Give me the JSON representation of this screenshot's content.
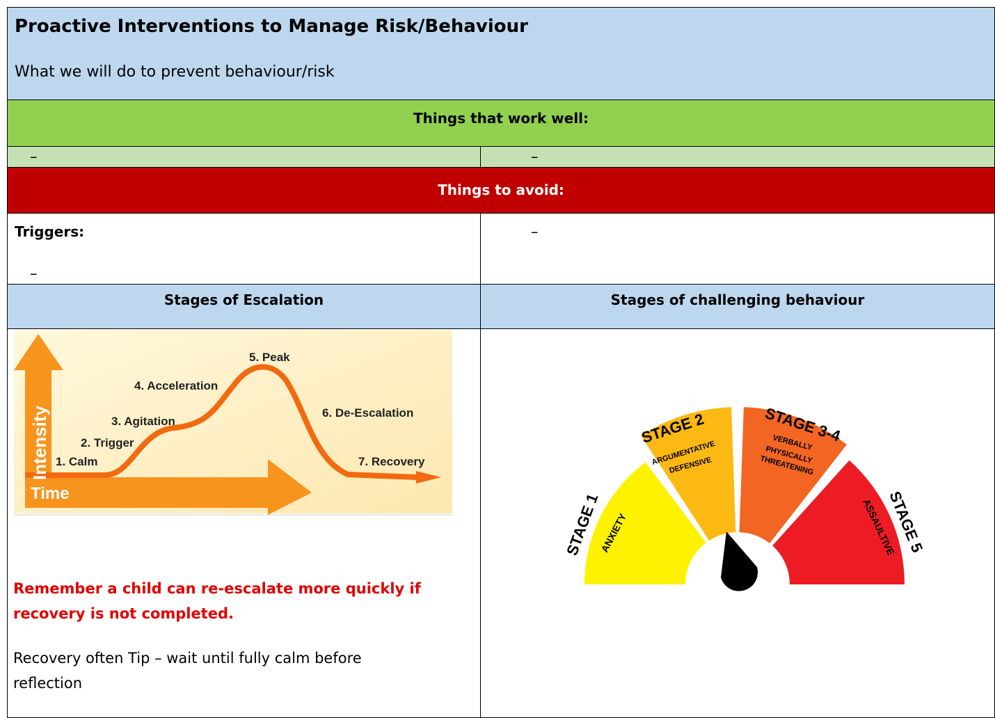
{
  "header": {
    "title": "Proactive Interventions to Manage Risk/Behaviour",
    "subtitle": "What we will do to prevent behaviour/risk"
  },
  "work_well": {
    "heading": "Things that work well:",
    "items": [
      "–",
      "–"
    ]
  },
  "avoid": {
    "heading": "Things to avoid:",
    "triggers_label": "Triggers:",
    "triggers_items": [
      "–"
    ],
    "other_items": [
      "–"
    ]
  },
  "stages": {
    "escalation_heading": "Stages of Escalation",
    "challenging_heading": "Stages of challenging behaviour"
  },
  "escalation_diagram": {
    "y_axis": "Intensity",
    "x_axis": "Time",
    "labels": [
      "1. Calm",
      "2. Trigger",
      "3. Agitation",
      "4. Acceleration",
      "5. Peak",
      "6. De-Escalation",
      "7. Recovery"
    ]
  },
  "gauge": {
    "stages": [
      {
        "title": "STAGE 1",
        "description": [
          "ANXIETY"
        ]
      },
      {
        "title": "STAGE 2",
        "description": [
          "ARGUMENTATIVE",
          "DEFENSIVE"
        ]
      },
      {
        "title": "STAGE 3-4",
        "description": [
          "VERBALLY",
          "PHYSICALLY",
          "THREATENING"
        ]
      },
      {
        "title": "STAGE 5",
        "description": [
          "ASSAULTIVE"
        ]
      }
    ]
  },
  "notes": {
    "warning": "Remember a child can re-escalate more quickly if recovery is not completed.",
    "tip": "Recovery often Tip – wait until fully calm before reflection"
  }
}
